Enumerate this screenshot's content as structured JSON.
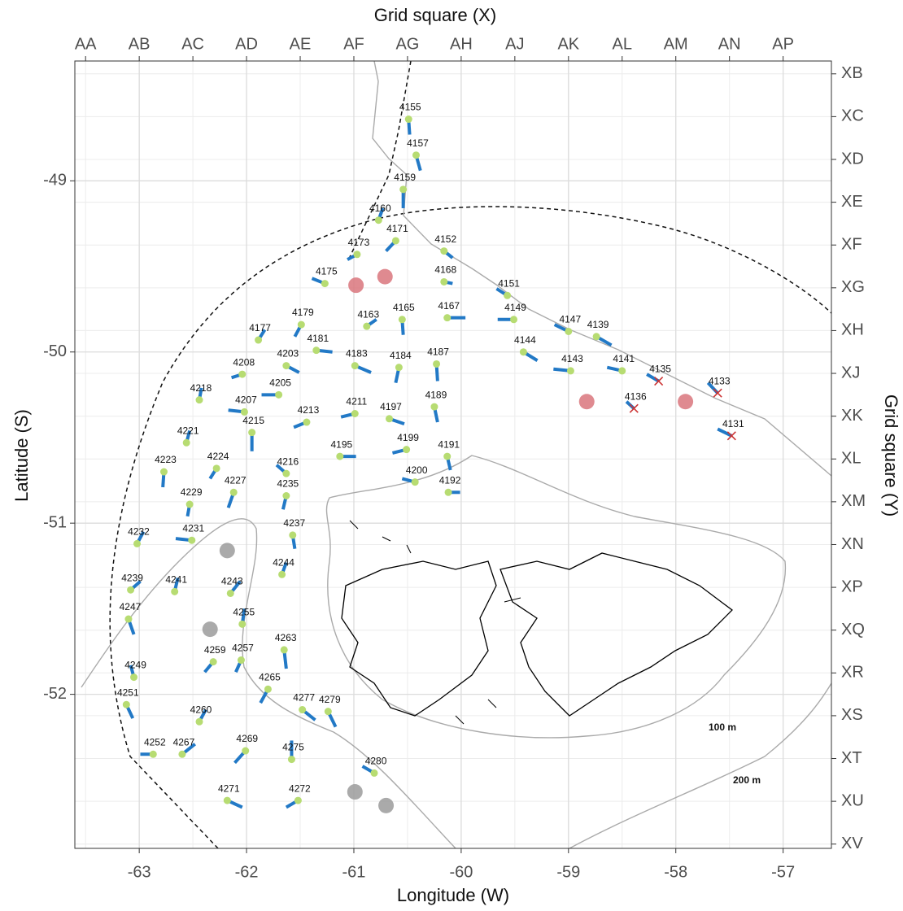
{
  "chart_data": {
    "type": "map",
    "x_label": "Longitude (W)",
    "y_label": "Latitude (S)",
    "x2_label": "Grid square (X)",
    "y2_label": "Grid square (Y)",
    "xlim": [
      -63.6,
      -56.55
    ],
    "ylim": [
      -52.9,
      -48.3
    ],
    "xticks": [
      -63,
      -62,
      -61,
      -60,
      -59,
      -58,
      -57
    ],
    "yticks": [
      -52,
      -51,
      -50,
      -49
    ],
    "x2ticks": [
      {
        "value": -63.5,
        "label": "AA"
      },
      {
        "value": -63,
        "label": "AB"
      },
      {
        "value": -62.5,
        "label": "AC"
      },
      {
        "value": -62,
        "label": "AD"
      },
      {
        "value": -61.5,
        "label": "AE"
      },
      {
        "value": -61,
        "label": "AF"
      },
      {
        "value": -60.5,
        "label": "AG"
      },
      {
        "value": -60,
        "label": "AH"
      },
      {
        "value": -59.5,
        "label": "AJ"
      },
      {
        "value": -59,
        "label": "AK"
      },
      {
        "value": -58.5,
        "label": "AL"
      },
      {
        "value": -58,
        "label": "AM"
      },
      {
        "value": -57.5,
        "label": "AN"
      },
      {
        "value": -57,
        "label": "AP"
      }
    ],
    "y2ticks": [
      {
        "value": -48.375,
        "label": "XB"
      },
      {
        "value": -48.625,
        "label": "XC"
      },
      {
        "value": -48.875,
        "label": "XD"
      },
      {
        "value": -49.125,
        "label": "XE"
      },
      {
        "value": -49.375,
        "label": "XF"
      },
      {
        "value": -49.625,
        "label": "XG"
      },
      {
        "value": -49.875,
        "label": "XH"
      },
      {
        "value": -50.125,
        "label": "XJ"
      },
      {
        "value": -50.375,
        "label": "XK"
      },
      {
        "value": -50.625,
        "label": "XL"
      },
      {
        "value": -50.875,
        "label": "XM"
      },
      {
        "value": -51.125,
        "label": "XN"
      },
      {
        "value": -51.375,
        "label": "XP"
      },
      {
        "value": -51.625,
        "label": "XQ"
      },
      {
        "value": -51.875,
        "label": "XR"
      },
      {
        "value": -52.125,
        "label": "XS"
      },
      {
        "value": -52.375,
        "label": "XT"
      },
      {
        "value": -52.625,
        "label": "XU"
      },
      {
        "value": -52.875,
        "label": "XV"
      }
    ],
    "grid": true,
    "isobath_labels": [
      "100 m",
      "200 m"
    ],
    "series": [
      {
        "marker": "dot",
        "color": "#b7dc72",
        "segment_color": "#2279c6",
        "labels": [
          "4155",
          "4157",
          "4159",
          "4160",
          "4171",
          "4173",
          "4175",
          "4152",
          "4168",
          "4151",
          "4163",
          "4165",
          "4167",
          "4149",
          "4147",
          "4139",
          "4177",
          "4179",
          "4181",
          "4144",
          "4143",
          "4141",
          "4203",
          "4183",
          "4184",
          "4187",
          "4208",
          "4218",
          "4205",
          "4207",
          "4213",
          "4211",
          "4197",
          "4189",
          "4221",
          "4215",
          "4195",
          "4199",
          "4191",
          "4223",
          "4224",
          "4216",
          "4200",
          "4192",
          "4229",
          "4227",
          "4235",
          "4232",
          "4231",
          "4237",
          "4239",
          "4241",
          "4243",
          "4244",
          "4255",
          "4247",
          "4249",
          "4259",
          "4257",
          "4263",
          "4265",
          "4251",
          "4260",
          "4277",
          "4279",
          "4252",
          "4267",
          "4269",
          "4275",
          "4280",
          "4271",
          "4272"
        ],
        "x": [
          -60.49,
          -60.42,
          -60.54,
          -60.77,
          -60.61,
          -60.97,
          -61.27,
          -60.16,
          -60.16,
          -59.57,
          -60.88,
          -60.55,
          -60.13,
          -59.51,
          -59.0,
          -58.74,
          -61.89,
          -61.49,
          -61.35,
          -59.42,
          -58.98,
          -58.5,
          -61.63,
          -60.99,
          -60.58,
          -60.23,
          -62.04,
          -62.44,
          -61.7,
          -62.02,
          -61.44,
          -60.99,
          -60.67,
          -60.25,
          -62.56,
          -61.95,
          -61.13,
          -60.51,
          -60.13,
          -62.77,
          -62.28,
          -61.63,
          -60.43,
          -60.12,
          -62.53,
          -62.12,
          -61.63,
          -63.02,
          -62.51,
          -61.57,
          -63.08,
          -62.67,
          -62.15,
          -61.67,
          -62.04,
          -63.1,
          -63.05,
          -62.31,
          -62.05,
          -61.65,
          -61.8,
          -63.12,
          -62.44,
          -61.48,
          -61.24,
          -62.87,
          -62.6,
          -62.01,
          -61.58,
          -60.81,
          -62.18,
          -61.52
        ],
        "y": [
          -48.64,
          -48.85,
          -49.05,
          -49.23,
          -49.35,
          -49.43,
          -49.6,
          -49.41,
          -49.59,
          -49.67,
          -49.85,
          -49.81,
          -49.8,
          -49.81,
          -49.88,
          -49.91,
          -49.93,
          -49.84,
          -49.99,
          -50.0,
          -50.11,
          -50.11,
          -50.08,
          -50.08,
          -50.09,
          -50.07,
          -50.13,
          -50.28,
          -50.25,
          -50.35,
          -50.41,
          -50.36,
          -50.39,
          -50.32,
          -50.53,
          -50.47,
          -50.61,
          -50.57,
          -50.61,
          -50.7,
          -50.68,
          -50.71,
          -50.76,
          -50.82,
          -50.89,
          -50.82,
          -50.84,
          -51.12,
          -51.1,
          -51.07,
          -51.39,
          -51.4,
          -51.41,
          -51.3,
          -51.59,
          -51.56,
          -51.9,
          -51.81,
          -51.8,
          -51.74,
          -51.97,
          -52.06,
          -52.16,
          -52.09,
          -52.1,
          -52.35,
          -52.35,
          -52.33,
          -52.38,
          -52.46,
          -52.62,
          -52.62
        ],
        "x_end": [
          -60.48,
          -60.38,
          -60.54,
          -60.73,
          -60.7,
          -61.06,
          -61.39,
          -60.08,
          -60.08,
          -59.67,
          -60.79,
          -60.54,
          -59.96,
          -59.66,
          -59.13,
          -58.6,
          -61.83,
          -61.55,
          -61.2,
          -59.29,
          -59.14,
          -58.64,
          -61.51,
          -60.84,
          -60.61,
          -60.22,
          -62.14,
          -62.42,
          -61.86,
          -62.17,
          -61.56,
          -61.12,
          -60.53,
          -60.22,
          -62.53,
          -61.95,
          -60.98,
          -60.64,
          -60.1,
          -62.78,
          -62.34,
          -61.72,
          -60.55,
          -60.01,
          -62.55,
          -62.17,
          -61.66,
          -62.96,
          -62.66,
          -61.55,
          -62.99,
          -62.64,
          -62.06,
          -61.63,
          -62.02,
          -63.05,
          -63.08,
          -62.39,
          -62.1,
          -61.63,
          -61.87,
          -63.06,
          -62.38,
          -61.36,
          -61.17,
          -62.99,
          -62.48,
          -62.11,
          -61.58,
          -60.92,
          -62.04,
          -61.63
        ],
        "y_end": [
          -48.73,
          -48.94,
          -49.16,
          -49.16,
          -49.41,
          -49.46,
          -49.57,
          -49.45,
          -49.6,
          -49.63,
          -49.81,
          -49.9,
          -49.8,
          -49.81,
          -49.84,
          -49.96,
          -49.87,
          -49.91,
          -50.0,
          -50.05,
          -50.1,
          -50.09,
          -50.12,
          -50.12,
          -50.18,
          -50.17,
          -50.15,
          -50.21,
          -50.25,
          -50.34,
          -50.44,
          -50.38,
          -50.42,
          -50.41,
          -50.46,
          -50.58,
          -50.61,
          -50.59,
          -50.69,
          -50.79,
          -50.74,
          -50.66,
          -50.74,
          -50.82,
          -50.96,
          -50.91,
          -50.92,
          -51.05,
          -51.09,
          -51.15,
          -51.34,
          -51.32,
          -51.34,
          -51.23,
          -51.5,
          -51.65,
          -51.83,
          -51.87,
          -51.87,
          -51.85,
          -52.05,
          -52.14,
          -52.09,
          -52.15,
          -52.19,
          -52.35,
          -52.29,
          -52.4,
          -52.27,
          -52.42,
          -52.66,
          -52.66
        ]
      },
      {
        "marker": "cross",
        "color": "#cc3333",
        "segment_color": "#2279c6",
        "labels": [
          "4135",
          "4133",
          "4136",
          "4131"
        ],
        "x": [
          -58.16,
          -57.61,
          -58.39,
          -57.48
        ],
        "y": [
          -50.17,
          -50.24,
          -50.33,
          -50.49
        ],
        "x_end": [
          -58.27,
          -57.7,
          -58.46,
          -57.61
        ],
        "y_end": [
          -50.13,
          -50.18,
          -50.29,
          -50.45
        ]
      },
      {
        "marker": "circle",
        "color": "#d9767c",
        "x": [
          -60.98,
          -60.71,
          -58.83,
          -57.91
        ],
        "y": [
          -49.61,
          -49.56,
          -50.29,
          -50.29
        ]
      },
      {
        "marker": "circle",
        "color": "#9b9b9b",
        "x": [
          -62.18,
          -62.34,
          -60.99,
          -60.7
        ],
        "y": [
          -51.16,
          -51.62,
          -52.57,
          -52.65
        ]
      }
    ]
  }
}
